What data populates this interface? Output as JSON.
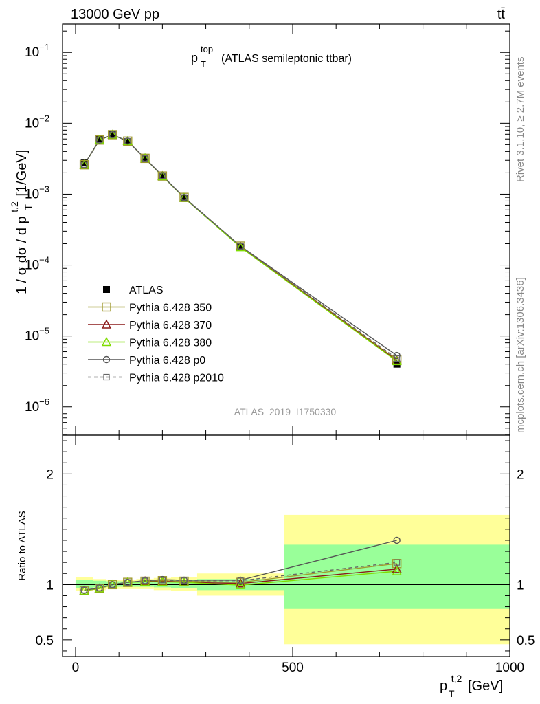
{
  "header": {
    "left": "13000 GeV pp",
    "right": "tt̄"
  },
  "side_labels": {
    "rivet": "Rivet 3.1.10, ≥ 2.7M events",
    "mcplots": "mcplots.cern.ch [arXiv:1306.3436]"
  },
  "analysis_id": "ATLAS_2019_I1750330",
  "colors": {
    "band_inner": "#99ff99",
    "band_outer": "#ffff99",
    "atlas": "#000000",
    "p350": "#a09a30",
    "p370": "#8b1a1a",
    "p380": "#7fdc00",
    "p0": "#555555",
    "p2010": "#666666"
  },
  "chart_data": [
    {
      "type": "line",
      "panel": "main",
      "title_main": "p",
      "title_sub": "T",
      "title_sup": "top",
      "title_rest": "(ATLAS semileptonic ttbar)",
      "ylabel": "1 / σ dσ / d p",
      "ylabel_sub": "T",
      "ylabel_sup": "t,2",
      "ylabel_unit": "[1/GeV]",
      "yscale": "log",
      "xlim": [
        -30,
        1000
      ],
      "ylim_exp": [
        -6.4,
        -0.6
      ],
      "y_ticks": [
        {
          "exp": -6,
          "base": "10",
          "sup": "−6"
        },
        {
          "exp": -5,
          "base": "10",
          "sup": "−5"
        },
        {
          "exp": -4,
          "base": "10",
          "sup": "−4"
        },
        {
          "exp": -3,
          "base": "10",
          "sup": "−3"
        },
        {
          "exp": -2,
          "base": "10",
          "sup": "−2"
        },
        {
          "exp": -1,
          "base": "10",
          "sup": "−1"
        }
      ],
      "x": [
        20,
        55,
        85,
        120,
        160,
        200,
        250,
        380,
        740
      ],
      "series": [
        {
          "key": "atlas",
          "name": "ATLAS",
          "marker": "square-filled",
          "values": [
            0.00275,
            0.006,
            0.0069,
            0.0055,
            0.0031,
            0.00175,
            0.00087,
            0.000178,
            4e-06
          ]
        },
        {
          "key": "p350",
          "name": "Pythia 6.428 350",
          "marker": "square-open",
          "values": [
            0.0026,
            0.0058,
            0.0069,
            0.0056,
            0.0032,
            0.0018,
            0.0009,
            0.000185,
            4.6e-06
          ]
        },
        {
          "key": "p370",
          "name": "Pythia 6.428 370",
          "marker": "triangle-open",
          "values": [
            0.0026,
            0.0058,
            0.0069,
            0.0056,
            0.0032,
            0.0018,
            0.00089,
            0.00018,
            4.5e-06
          ]
        },
        {
          "key": "p380",
          "name": "Pythia 6.428 380",
          "marker": "triangle-open",
          "values": [
            0.0026,
            0.0058,
            0.0069,
            0.0056,
            0.0032,
            0.00179,
            0.00089,
            0.000178,
            4.4e-06
          ]
        },
        {
          "key": "p0",
          "name": "Pythia 6.428 p0",
          "marker": "circle-open",
          "values": [
            0.0026,
            0.0058,
            0.0069,
            0.0056,
            0.0032,
            0.00182,
            0.0009,
            0.000185,
            5.3e-06
          ]
        },
        {
          "key": "p2010",
          "name": "Pythia 6.428 p2010",
          "marker": "square-open-small",
          "dashed": true,
          "values": [
            0.0026,
            0.0058,
            0.0069,
            0.0056,
            0.0032,
            0.00181,
            0.0009,
            0.000184,
            4.8e-06
          ]
        }
      ]
    },
    {
      "type": "line",
      "panel": "ratio",
      "ylabel": "Ratio to ATLAS",
      "xlabel": "p",
      "xlabel_sub": "T",
      "xlabel_sup": "t,2",
      "xlabel_unit": "[GeV]",
      "xlim": [
        -30,
        1000
      ],
      "ylim": [
        0.35,
        2.35
      ],
      "y_ticks": [
        0.5,
        1,
        2
      ],
      "x_ticks": [
        0,
        500,
        1000
      ],
      "bins": [
        {
          "lo": 0,
          "hi": 40,
          "inner": [
            0.97,
            1.04
          ],
          "outer": [
            0.94,
            1.07
          ]
        },
        {
          "lo": 40,
          "hi": 70,
          "inner": [
            0.975,
            1.035
          ],
          "outer": [
            0.95,
            1.05
          ]
        },
        {
          "lo": 70,
          "hi": 100,
          "inner": [
            0.98,
            1.03
          ],
          "outer": [
            0.96,
            1.04
          ]
        },
        {
          "lo": 100,
          "hi": 140,
          "inner": [
            0.98,
            1.03
          ],
          "outer": [
            0.96,
            1.04
          ]
        },
        {
          "lo": 140,
          "hi": 180,
          "inner": [
            0.98,
            1.03
          ],
          "outer": [
            0.96,
            1.05
          ]
        },
        {
          "lo": 180,
          "hi": 220,
          "inner": [
            0.975,
            1.035
          ],
          "outer": [
            0.95,
            1.06
          ]
        },
        {
          "lo": 220,
          "hi": 280,
          "inner": [
            0.97,
            1.04
          ],
          "outer": [
            0.94,
            1.07
          ]
        },
        {
          "lo": 280,
          "hi": 480,
          "inner": [
            0.95,
            1.05
          ],
          "outer": [
            0.9,
            1.1
          ]
        },
        {
          "lo": 480,
          "hi": 1000,
          "inner": [
            0.78,
            1.36
          ],
          "outer": [
            0.46,
            1.63
          ]
        }
      ],
      "x": [
        20,
        55,
        85,
        120,
        160,
        200,
        250,
        380,
        740
      ],
      "series": [
        {
          "key": "p350",
          "values": [
            0.945,
            0.965,
            1.0,
            1.02,
            1.03,
            1.035,
            1.03,
            1.02,
            1.19
          ]
        },
        {
          "key": "p370",
          "values": [
            0.945,
            0.965,
            1.0,
            1.02,
            1.03,
            1.03,
            1.02,
            1.01,
            1.14
          ]
        },
        {
          "key": "p380",
          "values": [
            0.945,
            0.965,
            1.0,
            1.02,
            1.025,
            1.025,
            1.02,
            0.995,
            1.12
          ]
        },
        {
          "key": "p0",
          "values": [
            0.95,
            0.97,
            1.0,
            1.02,
            1.035,
            1.045,
            1.04,
            1.04,
            1.4
          ]
        },
        {
          "key": "p2010",
          "values": [
            0.95,
            0.97,
            1.0,
            1.02,
            1.035,
            1.04,
            1.035,
            1.035,
            1.2
          ]
        }
      ]
    }
  ]
}
